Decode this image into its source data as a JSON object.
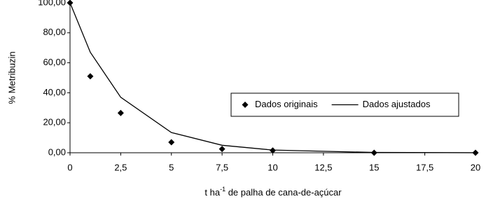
{
  "chart_data": {
    "type": "scatter",
    "y_label": "% Metribuzin",
    "x_label": {
      "text": "t ha",
      "superscript": "-1",
      "after": " de palha de cana-de-açúcar"
    },
    "x": [
      0,
      1,
      2.5,
      5,
      7.5,
      10,
      15,
      20
    ],
    "series": [
      {
        "name": "Dados originais",
        "type": "scatter",
        "color": "#000000",
        "values": [
          100,
          51,
          26.5,
          7,
          2.5,
          1.5,
          0,
          0
        ]
      },
      {
        "name": "Dados ajustados",
        "type": "line",
        "color": "#000000",
        "values": [
          100,
          67,
          37,
          13.5,
          5,
          1.8,
          0.2,
          0.03
        ]
      }
    ],
    "xlim": [
      0,
      20
    ],
    "xticks": [
      0,
      {
        "value": 2.5,
        "label": "2,5"
      },
      5,
      {
        "value": 7.5,
        "label": "7,5"
      },
      10,
      {
        "value": 12.5,
        "label": "12,5"
      },
      15,
      {
        "value": 17.5,
        "label": "17,5"
      },
      20
    ],
    "ylim": [
      0,
      100
    ],
    "yticks": [
      {
        "value": 0,
        "label": "0,00"
      },
      {
        "value": 20,
        "label": "20,00"
      },
      {
        "value": 40,
        "label": "40,00"
      },
      {
        "value": 60,
        "label": "60,00"
      },
      {
        "value": 80,
        "label": "80,00"
      },
      {
        "value": 100,
        "label": "100,00"
      }
    ],
    "grid": false,
    "legend": "right"
  }
}
